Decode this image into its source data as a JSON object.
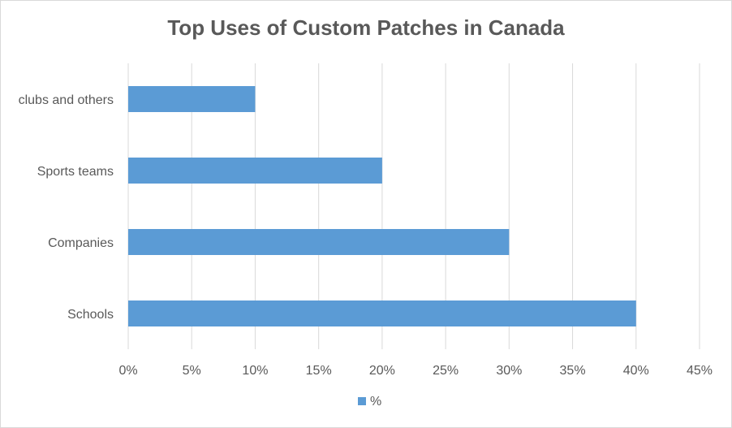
{
  "chart_data": {
    "type": "bar",
    "orientation": "horizontal",
    "title": "Top Uses of Custom Patches in Canada",
    "categories": [
      "clubs and others",
      "Sports teams",
      "Companies",
      "Schools"
    ],
    "series": [
      {
        "name": "%",
        "values": [
          10,
          20,
          30,
          40
        ],
        "color": "#5b9bd5"
      }
    ],
    "xlim": [
      0,
      45
    ],
    "x_ticks": [
      "0%",
      "5%",
      "10%",
      "15%",
      "20%",
      "25%",
      "30%",
      "35%",
      "40%",
      "45%"
    ],
    "x_tick_values": [
      0,
      5,
      10,
      15,
      20,
      25,
      30,
      35,
      40,
      45
    ],
    "grid": true,
    "legend_position": "bottom",
    "gridline_color": "#d9d9d9"
  }
}
